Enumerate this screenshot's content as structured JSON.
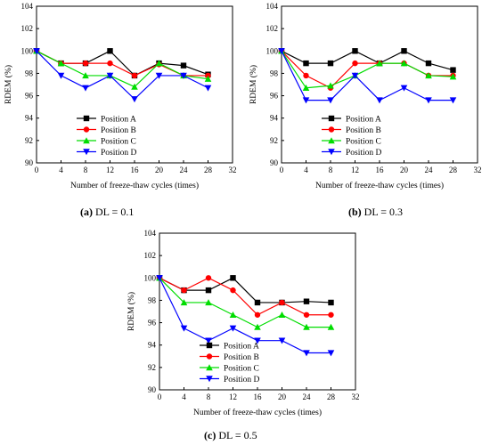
{
  "chart_data": [
    {
      "type": "line",
      "caption_letter": "(a)",
      "caption_text": "DL = 0.1",
      "xlabel": "Number of freeze-thaw cycles (times)",
      "ylabel": "RDEM (%)",
      "xlim": [
        0,
        32
      ],
      "ylim": [
        90,
        104
      ],
      "xticks": [
        0,
        4,
        8,
        12,
        16,
        20,
        24,
        28,
        32
      ],
      "yticks": [
        90,
        92,
        94,
        96,
        98,
        100,
        102,
        104
      ],
      "x": [
        0,
        4,
        8,
        12,
        16,
        20,
        24,
        28
      ],
      "legend_position": "lower-center",
      "grid": false,
      "series": [
        {
          "name": "Position A",
          "color": "#000000",
          "marker": "square",
          "values": [
            100,
            98.9,
            98.9,
            100,
            97.8,
            98.9,
            98.7,
            97.9
          ]
        },
        {
          "name": "Position B",
          "color": "#ff0000",
          "marker": "circle",
          "values": [
            100,
            98.9,
            98.9,
            98.9,
            97.8,
            98.8,
            97.8,
            97.8
          ]
        },
        {
          "name": "Position C",
          "color": "#00dd00",
          "marker": "triangle-up",
          "values": [
            100,
            98.9,
            97.8,
            97.8,
            96.8,
            98.9,
            97.8,
            97.5
          ]
        },
        {
          "name": "Position D",
          "color": "#0000ff",
          "marker": "triangle-down",
          "values": [
            100,
            97.8,
            96.7,
            97.8,
            95.7,
            97.8,
            97.8,
            96.7
          ]
        }
      ]
    },
    {
      "type": "line",
      "caption_letter": "(b)",
      "caption_text": "DL = 0.3",
      "xlabel": "Number of freeze-thaw cycles (times)",
      "ylabel": "RDEM (%)",
      "xlim": [
        0,
        32
      ],
      "ylim": [
        90,
        104
      ],
      "xticks": [
        0,
        4,
        8,
        12,
        16,
        20,
        24,
        28,
        32
      ],
      "yticks": [
        90,
        92,
        94,
        96,
        98,
        100,
        102,
        104
      ],
      "x": [
        0,
        4,
        8,
        12,
        16,
        20,
        24,
        28
      ],
      "legend_position": "lower-center",
      "grid": false,
      "series": [
        {
          "name": "Position A",
          "color": "#000000",
          "marker": "square",
          "values": [
            100,
            98.9,
            98.9,
            100,
            98.9,
            100,
            98.9,
            98.3
          ]
        },
        {
          "name": "Position B",
          "color": "#ff0000",
          "marker": "circle",
          "values": [
            100,
            97.8,
            96.7,
            98.9,
            98.9,
            98.9,
            97.8,
            97.8
          ]
        },
        {
          "name": "Position C",
          "color": "#00dd00",
          "marker": "triangle-up",
          "values": [
            100,
            96.7,
            96.9,
            97.8,
            98.9,
            98.9,
            97.8,
            97.7
          ]
        },
        {
          "name": "Position D",
          "color": "#0000ff",
          "marker": "triangle-down",
          "values": [
            100,
            95.6,
            95.6,
            97.8,
            95.6,
            96.7,
            95.6,
            95.6
          ]
        }
      ]
    },
    {
      "type": "line",
      "caption_letter": "(c)",
      "caption_text": "DL = 0.5",
      "xlabel": "Number of freeze-thaw cycles (times)",
      "ylabel": "RDEM (%)",
      "xlim": [
        0,
        32
      ],
      "ylim": [
        90,
        104
      ],
      "xticks": [
        0,
        4,
        8,
        12,
        16,
        20,
        24,
        28,
        32
      ],
      "yticks": [
        90,
        92,
        94,
        96,
        98,
        100,
        102,
        104
      ],
      "x": [
        0,
        4,
        8,
        12,
        16,
        20,
        24,
        28
      ],
      "legend_position": "lower-center",
      "grid": false,
      "series": [
        {
          "name": "Position A",
          "color": "#000000",
          "marker": "square",
          "values": [
            100,
            98.9,
            98.9,
            100,
            97.8,
            97.8,
            97.9,
            97.8
          ]
        },
        {
          "name": "Position B",
          "color": "#ff0000",
          "marker": "circle",
          "values": [
            100,
            98.9,
            100,
            98.9,
            96.7,
            97.8,
            96.7,
            96.7
          ]
        },
        {
          "name": "Position C",
          "color": "#00dd00",
          "marker": "triangle-up",
          "values": [
            100,
            97.8,
            97.8,
            96.7,
            95.6,
            96.7,
            95.6,
            95.6
          ]
        },
        {
          "name": "Position D",
          "color": "#0000ff",
          "marker": "triangle-down",
          "values": [
            100,
            95.5,
            94.4,
            95.5,
            94.4,
            94.4,
            93.3,
            93.3
          ]
        }
      ]
    }
  ]
}
